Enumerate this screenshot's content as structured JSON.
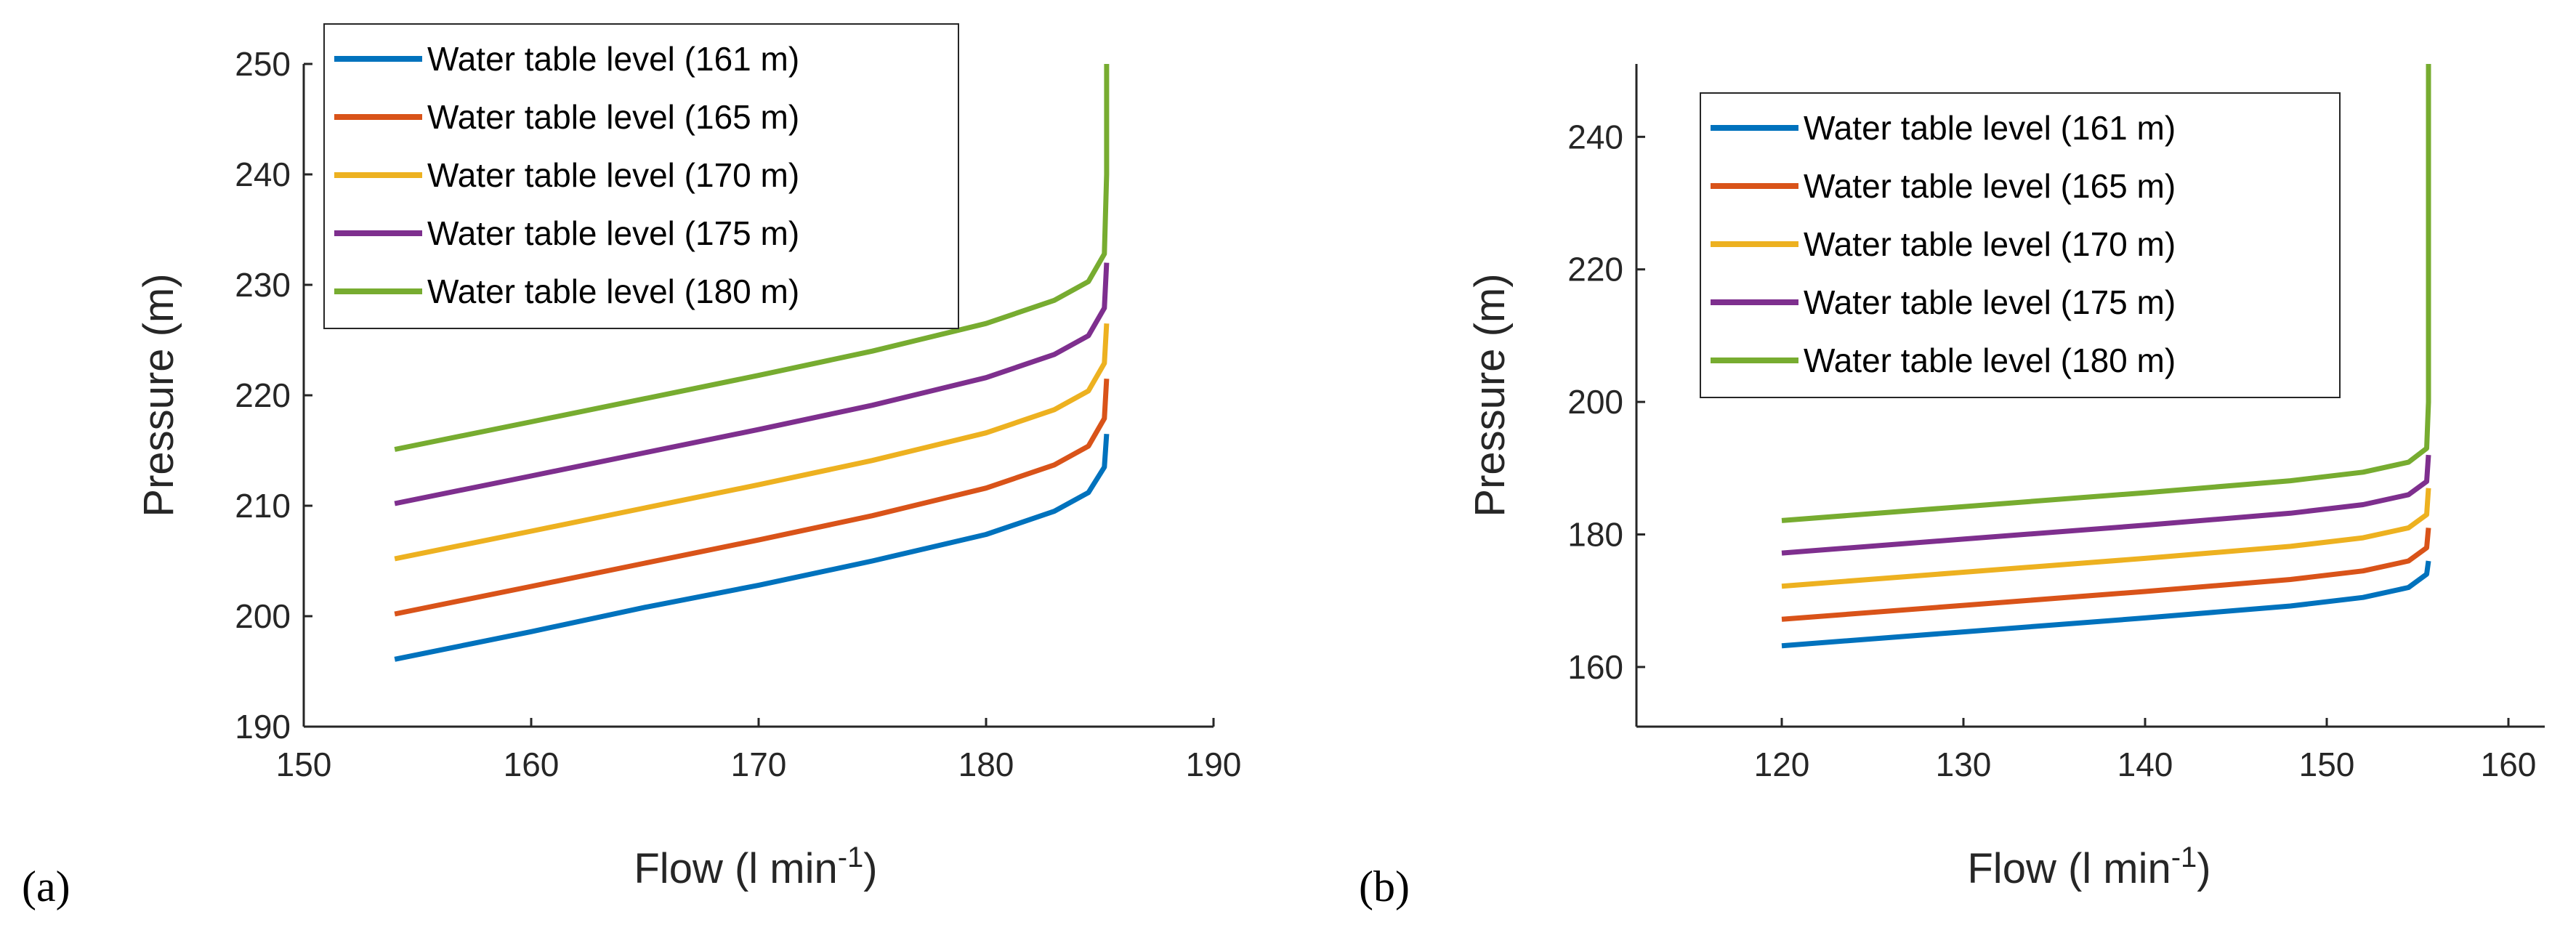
{
  "chart_data": [
    {
      "type": "line",
      "panel_label": "(a)",
      "xlabel": "Flow (l min",
      "xlabel_sup": "-1",
      "xlabel_end": ")",
      "ylabel": "Pressure (m)",
      "xlim": [
        150,
        190
      ],
      "ylim": [
        190,
        250
      ],
      "xticks": [
        150,
        160,
        170,
        180,
        190
      ],
      "yticks": [
        190,
        200,
        210,
        220,
        230,
        240,
        250
      ],
      "legend_position": "top-left",
      "series": [
        {
          "name": "Water table level (161 m)",
          "color": "#0072BD",
          "points": [
            [
              154,
              196.1
            ],
            [
              160,
              198.6
            ],
            [
              165,
              200.8
            ],
            [
              170,
              202.8
            ],
            [
              175,
              205.0
            ],
            [
              180,
              207.4
            ],
            [
              183,
              209.5
            ],
            [
              184.5,
              211.2
            ],
            [
              185.2,
              213.5
            ],
            [
              185.3,
              216.5
            ]
          ]
        },
        {
          "name": "Water table level (165 m)",
          "color": "#D95319",
          "points": [
            [
              154,
              200.2
            ],
            [
              160,
              202.7
            ],
            [
              165,
              204.8
            ],
            [
              170,
              206.9
            ],
            [
              175,
              209.1
            ],
            [
              180,
              211.6
            ],
            [
              183,
              213.7
            ],
            [
              184.5,
              215.4
            ],
            [
              185.2,
              217.9
            ],
            [
              185.3,
              221.5
            ]
          ]
        },
        {
          "name": "Water table level (170 m)",
          "color": "#EDB120",
          "points": [
            [
              154,
              205.2
            ],
            [
              160,
              207.7
            ],
            [
              165,
              209.8
            ],
            [
              170,
              211.9
            ],
            [
              175,
              214.1
            ],
            [
              180,
              216.6
            ],
            [
              183,
              218.7
            ],
            [
              184.5,
              220.4
            ],
            [
              185.2,
              222.9
            ],
            [
              185.3,
              226.5
            ]
          ]
        },
        {
          "name": "Water table level (175 m)",
          "color": "#7E2F8E",
          "points": [
            [
              154,
              210.2
            ],
            [
              160,
              212.7
            ],
            [
              165,
              214.8
            ],
            [
              170,
              216.9
            ],
            [
              175,
              219.1
            ],
            [
              180,
              221.6
            ],
            [
              183,
              223.7
            ],
            [
              184.5,
              225.4
            ],
            [
              185.2,
              227.9
            ],
            [
              185.3,
              232.0
            ]
          ]
        },
        {
          "name": "Water table level (180 m)",
          "color": "#77AC30",
          "points": [
            [
              154,
              215.1
            ],
            [
              160,
              217.6
            ],
            [
              165,
              219.7
            ],
            [
              170,
              221.8
            ],
            [
              175,
              224.0
            ],
            [
              180,
              226.5
            ],
            [
              183,
              228.6
            ],
            [
              184.5,
              230.3
            ],
            [
              185.2,
              232.8
            ],
            [
              185.3,
              240.0
            ],
            [
              185.3,
              250.0
            ]
          ]
        }
      ]
    },
    {
      "type": "line",
      "panel_label": "(b)",
      "xlabel": "Flow (l min",
      "xlabel_sup": "-1",
      "xlabel_end": ")",
      "ylabel": "Pressure (m)",
      "xlim": [
        112,
        162
      ],
      "ylim": [
        151,
        251
      ],
      "xticks": [
        120,
        130,
        140,
        150,
        160
      ],
      "yticks": [
        160,
        180,
        200,
        220,
        240
      ],
      "legend_position": "top-left",
      "series": [
        {
          "name": "Water table level (161 m)",
          "color": "#0072BD",
          "points": [
            [
              120,
              163.2
            ],
            [
              130,
              165.3
            ],
            [
              140,
              167.4
            ],
            [
              148,
              169.2
            ],
            [
              152,
              170.5
            ],
            [
              154.5,
              172.0
            ],
            [
              155.5,
              174.0
            ],
            [
              155.6,
              176.0
            ]
          ]
        },
        {
          "name": "Water table level (165 m)",
          "color": "#D95319",
          "points": [
            [
              120,
              167.2
            ],
            [
              130,
              169.3
            ],
            [
              140,
              171.4
            ],
            [
              148,
              173.2
            ],
            [
              152,
              174.5
            ],
            [
              154.5,
              176.0
            ],
            [
              155.5,
              178.0
            ],
            [
              155.6,
              181.0
            ]
          ]
        },
        {
          "name": "Water table level (170 m)",
          "color": "#EDB120",
          "points": [
            [
              120,
              172.2
            ],
            [
              130,
              174.3
            ],
            [
              140,
              176.4
            ],
            [
              148,
              178.2
            ],
            [
              152,
              179.5
            ],
            [
              154.5,
              181.0
            ],
            [
              155.5,
              183.0
            ],
            [
              155.6,
              187.0
            ]
          ]
        },
        {
          "name": "Water table level (175 m)",
          "color": "#7E2F8E",
          "points": [
            [
              120,
              177.2
            ],
            [
              130,
              179.3
            ],
            [
              140,
              181.4
            ],
            [
              148,
              183.2
            ],
            [
              152,
              184.5
            ],
            [
              154.5,
              186.0
            ],
            [
              155.5,
              188.0
            ],
            [
              155.6,
              192.0
            ]
          ]
        },
        {
          "name": "Water table level (180 m)",
          "color": "#77AC30",
          "points": [
            [
              120,
              182.1
            ],
            [
              130,
              184.2
            ],
            [
              140,
              186.3
            ],
            [
              148,
              188.1
            ],
            [
              152,
              189.4
            ],
            [
              154.5,
              190.9
            ],
            [
              155.5,
              193.0
            ],
            [
              155.6,
              200.0
            ],
            [
              155.6,
              251.0
            ]
          ]
        }
      ]
    }
  ]
}
